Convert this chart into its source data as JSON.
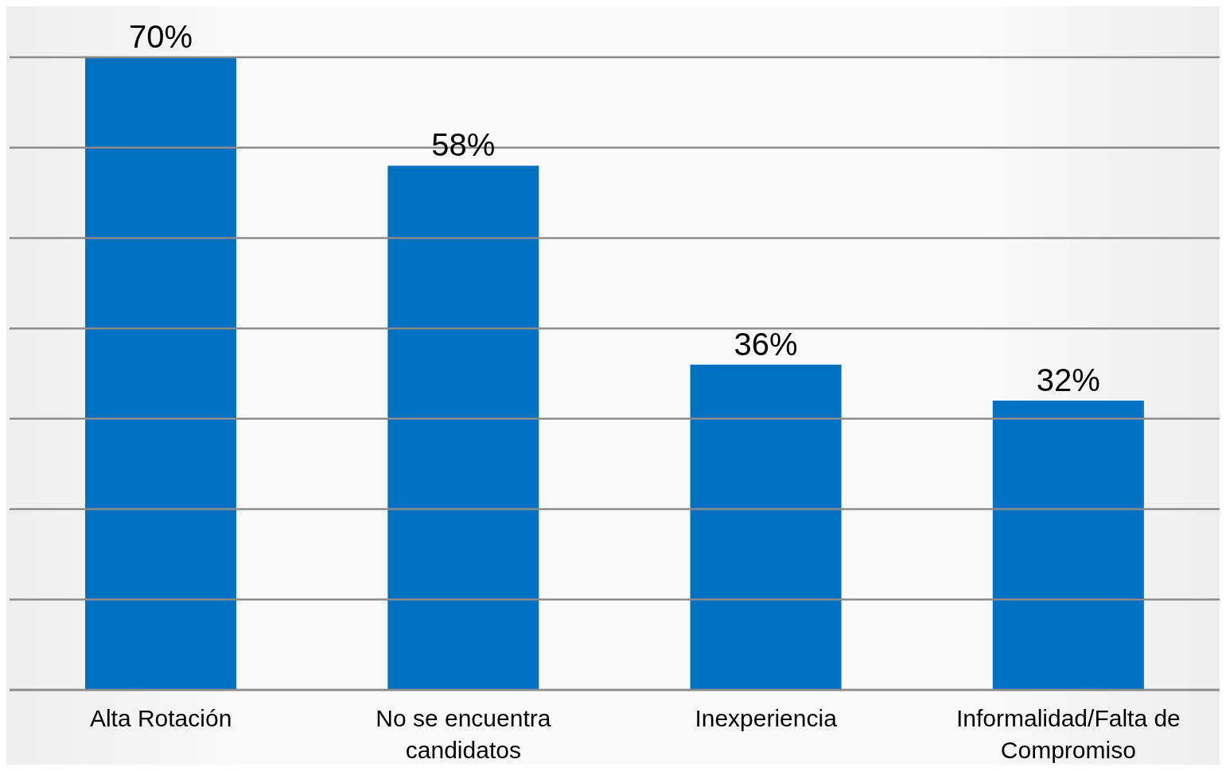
{
  "chart_data": {
    "type": "bar",
    "categories": [
      "Alta Rotación",
      "No se encuentra candidatos",
      "Inexperiencia",
      "Informalidad/Falta de Compromiso"
    ],
    "values": [
      70,
      58,
      36,
      32
    ],
    "color": "#0070c0",
    "value_labels": [
      "70%",
      "58%",
      "36%",
      "32%"
    ],
    "ylim": [
      0,
      70
    ],
    "yticks": [
      {
        "value": 0,
        "label": null
      },
      {
        "value": 10,
        "label": null
      },
      {
        "value": 20,
        "label": null
      },
      {
        "value": 30,
        "label": null
      },
      {
        "value": 40,
        "label": null
      },
      {
        "value": 50,
        "label": null
      },
      {
        "value": 60,
        "label": null
      },
      {
        "value": 70,
        "label": null
      }
    ],
    "grid": "y",
    "tick_labels": "x",
    "legend": false
  }
}
